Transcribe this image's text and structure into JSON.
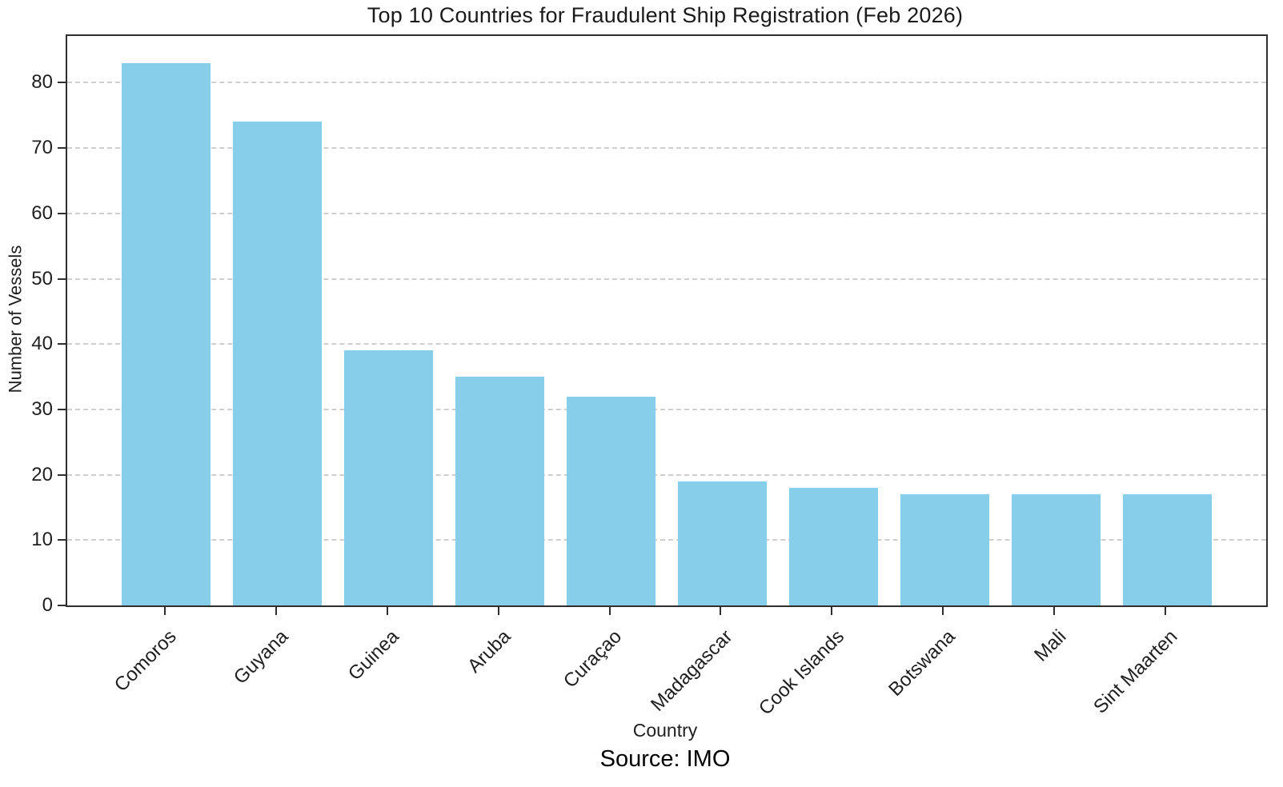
{
  "chart_data": {
    "type": "bar",
    "title": "Top 10 Countries for Fraudulent Ship Registration (Feb 2026)",
    "xlabel": "Country",
    "ylabel": "Number of Vessels",
    "source_note": "Source: IMO",
    "categories": [
      "Comoros",
      "Guyana",
      "Guinea",
      "Aruba",
      "Curaçao",
      "Madagascar",
      "Cook Islands",
      "Botswana",
      "Mali",
      "Sint Maarten"
    ],
    "values": [
      83,
      74,
      39,
      35,
      32,
      19,
      18,
      17,
      17,
      17
    ],
    "y_ticks": [
      0,
      10,
      20,
      30,
      40,
      50,
      60,
      70,
      80
    ],
    "ylim": [
      0,
      87.15
    ],
    "bar_color": "#87CEEB",
    "grid": "horizontal-dashed",
    "grid_color": "#cfcfcf",
    "spine_color": "#2f2f2f",
    "legend_position": "none"
  }
}
